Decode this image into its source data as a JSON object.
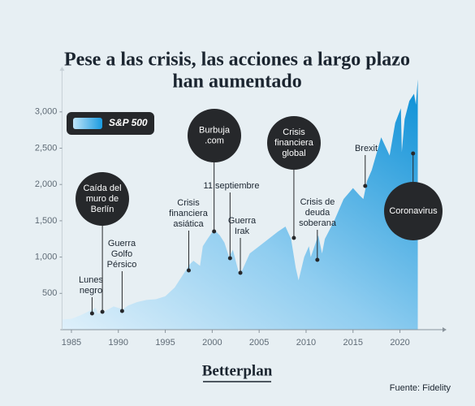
{
  "chart_data": {
    "type": "area",
    "title": [
      "Pese a las crisis, las acciones a largo plazo",
      "han aumentado"
    ],
    "x": [
      1984,
      1985,
      1986,
      1987.6,
      1987.8,
      1988.5,
      1989.5,
      1990.5,
      1991,
      1992,
      1993,
      1994,
      1995,
      1996,
      1997,
      1997.6,
      1998,
      1998.7,
      1999,
      1999.5,
      2000.2,
      2000.8,
      2001.3,
      2001.8,
      2002.2,
      2002.8,
      2003.2,
      2004,
      2005,
      2006,
      2007,
      2007.8,
      2008.4,
      2008.9,
      2009.2,
      2009.8,
      2010.3,
      2010.5,
      2011.3,
      2011.7,
      2012,
      2013,
      2014,
      2015,
      2015.7,
      2016.1,
      2016.5,
      2017,
      2018,
      2018.9,
      2019.5,
      2020.1,
      2020.2,
      2020.5,
      2021,
      2021.5,
      2021.7,
      2021.9
    ],
    "series": [
      {
        "name": "S&P 500",
        "color": "#0a93d8",
        "values": [
          140,
          150,
          200,
          300,
          220,
          250,
          320,
          280,
          330,
          380,
          410,
          420,
          460,
          580,
          780,
          900,
          950,
          880,
          1150,
          1250,
          1380,
          1300,
          1200,
          1000,
          1100,
          800,
          820,
          1050,
          1150,
          1250,
          1350,
          1420,
          1250,
          850,
          680,
          1000,
          1150,
          1000,
          1300,
          1050,
          1250,
          1500,
          1800,
          1950,
          1850,
          1800,
          2050,
          2200,
          2650,
          2400,
          2850,
          3050,
          2450,
          2900,
          3150,
          3250,
          3100,
          3450
        ]
      }
    ],
    "xlim": [
      1984,
      2024
    ],
    "xticks": [
      1985,
      1990,
      1995,
      2000,
      2005,
      2010,
      2015,
      2020
    ],
    "ylim": [
      0,
      3500
    ],
    "yticks": [
      500,
      {
        "value": 1000,
        "label": "1,000"
      },
      {
        "value": 1500,
        "label": "1,500"
      },
      {
        "value": 2000,
        "label": "2,000"
      },
      {
        "value": 2500,
        "label": "2,500"
      },
      {
        "value": 3000,
        "label": "3,000"
      }
    ],
    "annotations": [
      {
        "label": [
          "Lunes",
          "negro"
        ],
        "x": 1987.2,
        "y": 224
      },
      {
        "label": [
          "Caída del",
          "muro de",
          "Berlín"
        ],
        "x": 1988.3,
        "y": 246
      },
      {
        "label": [
          "Guerra",
          "Golfo",
          "Pérsico"
        ],
        "x": 1990.4,
        "y": 257
      },
      {
        "label": [
          "Crisis",
          "financiera",
          "asiática"
        ],
        "x": 1997.5,
        "y": 817
      },
      {
        "label": [
          "Burbuja",
          ".com"
        ],
        "x": 2000.2,
        "y": 1353
      },
      {
        "label": [
          "11 septiembre"
        ],
        "x": 2001.9,
        "y": 984
      },
      {
        "label": [
          "Guerra",
          "Irak"
        ],
        "x": 2003,
        "y": 783
      },
      {
        "label": [
          "Crisis",
          "financiera",
          "global"
        ],
        "x": 2008.7,
        "y": 1264
      },
      {
        "label": [
          "Crisis de",
          "deuda",
          "soberana"
        ],
        "x": 2011.2,
        "y": 962
      },
      {
        "label": [
          "Brexit"
        ],
        "x": 2016.3,
        "y": 1980
      },
      {
        "label": [
          "Coronavirus"
        ],
        "x": 2021.4,
        "y": 2427
      }
    ]
  },
  "brand": "Betterplan",
  "source": "Fuente: Fidelity"
}
